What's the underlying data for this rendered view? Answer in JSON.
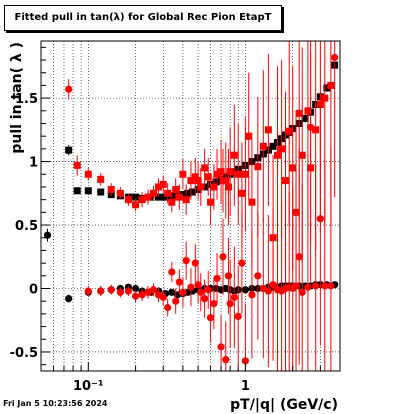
{
  "header": {
    "title": "Fitted pull in tan(λ) for Global Rec Pion EtapT",
    "timestamp": "Fri Jan  5 10:23:56 2024"
  },
  "colors": {
    "red_series": "#ff0000",
    "black_series": "#000000",
    "grid": "#000000"
  },
  "chart_data": {
    "type": "scatter",
    "title": "Fitted pull in tan(λ) for Global Rec Pion EtapT",
    "xlabel": "pT/|q| (GeV/c)",
    "ylabel": "pull in tan( λ )",
    "xscale": "log",
    "xlim": [
      0.05,
      4.0
    ],
    "ylim": [
      -0.65,
      1.95
    ],
    "grid": true,
    "x_ticks": [
      {
        "value": 0.1,
        "label": "10⁻¹"
      },
      {
        "value": 1,
        "label": "1"
      }
    ],
    "y_ticks": [
      {
        "value": -0.5,
        "label": "-0.5"
      },
      {
        "value": 0,
        "label": "0"
      },
      {
        "value": 0.5,
        "label": "0.5"
      },
      {
        "value": 1,
        "label": "1"
      },
      {
        "value": 1.5,
        "label": "1.5"
      }
    ],
    "series": [
      {
        "color": "#000000",
        "marker": "square",
        "x": [
          0.075,
          0.085,
          0.1,
          0.12,
          0.14,
          0.16,
          0.18,
          0.2,
          0.22,
          0.25,
          0.28,
          0.31,
          0.34,
          0.37,
          0.4,
          0.43,
          0.46,
          0.5,
          0.55,
          0.6,
          0.65,
          0.7,
          0.75,
          0.8,
          0.85,
          0.9,
          1.0,
          1.1,
          1.2,
          1.3,
          1.4,
          1.5,
          1.6,
          1.7,
          1.8,
          1.9,
          2.0,
          2.2,
          2.4,
          2.6,
          2.8,
          3.0,
          3.3,
          3.7
        ],
        "y": [
          1.09,
          0.77,
          0.77,
          0.76,
          0.74,
          0.73,
          0.72,
          0.72,
          0.71,
          0.72,
          0.72,
          0.72,
          0.73,
          0.73,
          0.74,
          0.75,
          0.76,
          0.78,
          0.8,
          0.82,
          0.84,
          0.86,
          0.88,
          0.9,
          0.92,
          0.94,
          0.97,
          1.0,
          1.03,
          1.06,
          1.09,
          1.12,
          1.15,
          1.18,
          1.21,
          1.23,
          1.26,
          1.3,
          1.34,
          1.39,
          1.45,
          1.51,
          1.58,
          1.76
        ],
        "err": [
          0.04,
          0.02,
          0.02,
          0.02,
          0.02,
          0.02,
          0.02,
          0.02,
          0.02,
          0.02,
          0.02,
          0.02,
          0.02,
          0.02,
          0.02,
          0.02,
          0.02,
          0.02,
          0.02,
          0.02,
          0.02,
          0.02,
          0.02,
          0.02,
          0.02,
          0.02,
          0.02,
          0.02,
          0.02,
          0.02,
          0.02,
          0.02,
          0.02,
          0.02,
          0.02,
          0.02,
          0.03,
          0.03,
          0.03,
          0.03,
          0.03,
          0.03,
          0.03,
          0.03
        ]
      },
      {
        "color": "#000000",
        "marker": "circle",
        "x": [
          0.055,
          0.075,
          0.1,
          0.12,
          0.14,
          0.16,
          0.18,
          0.2,
          0.22,
          0.25,
          0.28,
          0.31,
          0.34,
          0.37,
          0.4,
          0.43,
          0.46,
          0.5,
          0.55,
          0.6,
          0.65,
          0.7,
          0.75,
          0.8,
          0.85,
          0.9,
          1.0,
          1.1,
          1.2,
          1.3,
          1.4,
          1.5,
          1.6,
          1.7,
          1.8,
          1.9,
          2.0,
          2.2,
          2.4,
          2.6,
          2.8,
          3.0,
          3.3,
          3.7
        ],
        "y": [
          0.42,
          -0.08,
          -0.03,
          -0.02,
          -0.01,
          0.0,
          0.01,
          0.0,
          -0.02,
          -0.03,
          -0.02,
          -0.04,
          -0.03,
          -0.05,
          -0.04,
          -0.03,
          -0.02,
          -0.01,
          0.0,
          0.0,
          0.0,
          -0.01,
          0.0,
          -0.01,
          -0.02,
          -0.01,
          -0.01,
          0.0,
          0.0,
          0.0,
          0.01,
          0.01,
          0.01,
          0.02,
          0.02,
          0.02,
          0.02,
          0.02,
          0.02,
          0.02,
          0.03,
          0.03,
          0.03,
          0.03
        ],
        "err": [
          0.05,
          0.03,
          0.02,
          0.02,
          0.02,
          0.02,
          0.02,
          0.02,
          0.02,
          0.02,
          0.02,
          0.02,
          0.02,
          0.02,
          0.02,
          0.02,
          0.02,
          0.02,
          0.02,
          0.02,
          0.02,
          0.02,
          0.02,
          0.02,
          0.02,
          0.02,
          0.02,
          0.02,
          0.02,
          0.02,
          0.02,
          0.02,
          0.02,
          0.02,
          0.02,
          0.02,
          0.02,
          0.02,
          0.02,
          0.02,
          0.02,
          0.02,
          0.02,
          0.02
        ]
      },
      {
        "color": "#ff0000",
        "marker": "square",
        "x": [
          0.085,
          0.1,
          0.12,
          0.14,
          0.16,
          0.18,
          0.2,
          0.22,
          0.24,
          0.26,
          0.28,
          0.3,
          0.32,
          0.34,
          0.36,
          0.38,
          0.4,
          0.42,
          0.45,
          0.48,
          0.5,
          0.52,
          0.55,
          0.58,
          0.6,
          0.63,
          0.66,
          0.7,
          0.72,
          0.75,
          0.78,
          0.8,
          0.85,
          0.9,
          0.95,
          1.0,
          1.05,
          1.1,
          1.2,
          1.3,
          1.4,
          1.5,
          1.6,
          1.7,
          1.8,
          1.9,
          2.0,
          2.1,
          2.2,
          2.3,
          2.5,
          2.6,
          2.8,
          3.0,
          3.2,
          3.5
        ],
        "y": [
          0.97,
          0.9,
          0.86,
          0.78,
          0.75,
          0.7,
          0.66,
          0.7,
          0.72,
          0.75,
          0.8,
          0.82,
          0.75,
          0.68,
          0.78,
          0.72,
          0.9,
          0.7,
          0.85,
          0.88,
          0.85,
          0.8,
          0.95,
          0.88,
          0.68,
          0.8,
          0.9,
          0.92,
          0.85,
          0.85,
          0.8,
          0.92,
          1.05,
          0.9,
          0.75,
          0.9,
          1.2,
          0.68,
          0.96,
          1.12,
          1.25,
          0.4,
          1.05,
          1.1,
          0.85,
          1.24,
          0.95,
          0.6,
          1.38,
          1.05,
          1.4,
          0.95,
          1.25,
          1.45,
          1.5,
          1.6
        ],
        "err": [
          0.08,
          0.05,
          0.05,
          0.05,
          0.05,
          0.05,
          0.05,
          0.06,
          0.06,
          0.06,
          0.07,
          0.07,
          0.08,
          0.08,
          0.09,
          0.1,
          0.12,
          0.12,
          0.15,
          0.15,
          0.15,
          0.15,
          0.15,
          0.15,
          0.18,
          0.18,
          0.2,
          0.25,
          0.25,
          0.3,
          0.3,
          0.35,
          0.4,
          0.4,
          0.4,
          0.45,
          0.5,
          0.5,
          0.55,
          0.6,
          0.6,
          0.65,
          0.7,
          0.7,
          0.7,
          0.75,
          0.8,
          0.8,
          0.85,
          0.85,
          0.9,
          0.9,
          0.95,
          1.0,
          1.0,
          1.1
        ]
      },
      {
        "color": "#ff0000",
        "marker": "circle",
        "x": [
          0.075,
          0.1,
          0.12,
          0.14,
          0.16,
          0.18,
          0.2,
          0.22,
          0.24,
          0.26,
          0.28,
          0.3,
          0.32,
          0.34,
          0.36,
          0.38,
          0.4,
          0.42,
          0.45,
          0.48,
          0.5,
          0.52,
          0.55,
          0.58,
          0.6,
          0.63,
          0.66,
          0.7,
          0.72,
          0.75,
          0.78,
          0.8,
          0.85,
          0.9,
          0.95,
          1.0,
          1.1,
          1.2,
          1.3,
          1.4,
          1.5,
          1.6,
          1.7,
          1.8,
          1.9,
          2.0,
          2.1,
          2.2,
          2.3,
          2.5,
          2.6,
          2.8,
          3.0,
          3.2,
          3.5,
          3.7
        ],
        "y": [
          1.57,
          -0.02,
          -0.02,
          -0.01,
          -0.03,
          -0.02,
          -0.06,
          -0.05,
          -0.03,
          -0.01,
          -0.05,
          -0.07,
          -0.15,
          0.13,
          -0.1,
          0.05,
          -0.03,
          0.22,
          0.01,
          0.2,
          0.03,
          -0.03,
          -0.08,
          -0.01,
          -0.23,
          -0.12,
          0.08,
          -0.46,
          0.25,
          -0.56,
          0.1,
          -0.12,
          -0.07,
          -0.22,
          0.2,
          -0.57,
          -0.05,
          0.1,
          0.0,
          -0.02,
          0.03,
          -0.01,
          -0.02,
          0.0,
          0.01,
          0.0,
          0.02,
          0.25,
          -0.03,
          0.01,
          1.27,
          0.02,
          0.55,
          0.02,
          0.02,
          1.82
        ],
        "err": [
          0.08,
          0.04,
          0.04,
          0.04,
          0.04,
          0.04,
          0.05,
          0.05,
          0.05,
          0.05,
          0.06,
          0.06,
          0.07,
          0.08,
          0.1,
          0.1,
          0.12,
          0.15,
          0.15,
          0.15,
          0.15,
          0.15,
          0.15,
          0.15,
          0.2,
          0.2,
          0.2,
          0.25,
          0.3,
          0.3,
          0.3,
          0.35,
          0.4,
          0.4,
          0.4,
          0.45,
          0.5,
          0.5,
          0.55,
          0.6,
          0.6,
          0.65,
          0.7,
          0.7,
          0.75,
          0.8,
          0.8,
          0.85,
          0.85,
          0.9,
          0.9,
          0.95,
          1.0,
          1.0,
          1.1,
          1.1
        ]
      }
    ]
  }
}
